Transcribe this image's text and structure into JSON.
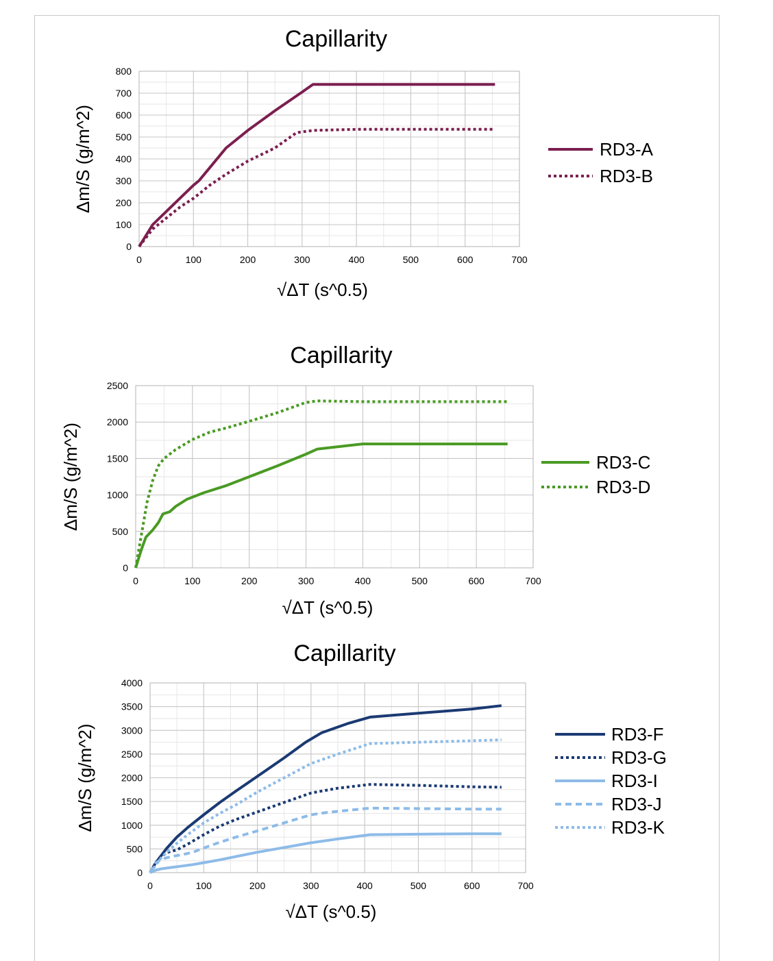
{
  "chart_data": [
    {
      "type": "line",
      "title": "Capillarity",
      "xlabel": "√ΔT (s^0.5)",
      "ylabel": "Δm/S (g/m^2)",
      "xlim": [
        0,
        700
      ],
      "ylim": [
        0,
        800
      ],
      "xticks": [
        0,
        100,
        200,
        300,
        400,
        500,
        600,
        700
      ],
      "yticks": [
        0,
        100,
        200,
        300,
        400,
        500,
        600,
        700,
        800
      ],
      "grid": true,
      "legend_position": "right",
      "series": [
        {
          "name": "RD3-A",
          "color": "#7b1f4f",
          "dash": "solid",
          "x": [
            0,
            25,
            50,
            75,
            100,
            110,
            130,
            160,
            200,
            250,
            300,
            320,
            400,
            500,
            600,
            655
          ],
          "y": [
            0,
            100,
            160,
            220,
            280,
            300,
            360,
            450,
            530,
            620,
            705,
            740,
            740,
            740,
            740,
            740
          ]
        },
        {
          "name": "RD3-B",
          "color": "#7b1f4f",
          "dash": "dotted",
          "x": [
            0,
            25,
            50,
            75,
            100,
            130,
            160,
            200,
            250,
            290,
            320,
            400,
            500,
            600,
            655
          ],
          "y": [
            0,
            80,
            130,
            180,
            220,
            280,
            330,
            390,
            450,
            520,
            530,
            535,
            535,
            535,
            535
          ]
        }
      ]
    },
    {
      "type": "line",
      "title": "Capillarity",
      "xlabel": "√ΔT (s^0.5)",
      "ylabel": "Δm/S (g/m^2)",
      "xlim": [
        0,
        700
      ],
      "ylim": [
        0,
        2500
      ],
      "xticks": [
        0,
        100,
        200,
        300,
        400,
        500,
        600,
        700
      ],
      "yticks": [
        0,
        500,
        1000,
        1500,
        2000,
        2500
      ],
      "grid": true,
      "legend_position": "right",
      "series": [
        {
          "name": "RD3-C",
          "color": "#4a9a24",
          "dash": "solid",
          "x": [
            0,
            10,
            18,
            30,
            40,
            48,
            60,
            70,
            90,
            120,
            160,
            200,
            250,
            300,
            320,
            400,
            500,
            600,
            655
          ],
          "y": [
            0,
            250,
            420,
            520,
            620,
            740,
            770,
            840,
            940,
            1030,
            1130,
            1250,
            1400,
            1560,
            1630,
            1700,
            1700,
            1700,
            1700
          ]
        },
        {
          "name": "RD3-D",
          "color": "#4a9a24",
          "dash": "dotted",
          "x": [
            0,
            10,
            20,
            30,
            40,
            50,
            70,
            100,
            130,
            160,
            200,
            250,
            300,
            320,
            400,
            500,
            600,
            655
          ],
          "y": [
            0,
            450,
            900,
            1200,
            1400,
            1500,
            1620,
            1760,
            1860,
            1920,
            2010,
            2130,
            2270,
            2290,
            2280,
            2280,
            2280,
            2280
          ]
        }
      ]
    },
    {
      "type": "line",
      "title": "Capillarity",
      "xlabel": "√ΔT (s^0.5)",
      "ylabel": "Δm/S (g/m^2)",
      "xlim": [
        0,
        700
      ],
      "ylim": [
        0,
        4000
      ],
      "xticks": [
        0,
        100,
        200,
        300,
        400,
        500,
        600,
        700
      ],
      "yticks": [
        0,
        500,
        1000,
        1500,
        2000,
        2500,
        3000,
        3500,
        4000
      ],
      "grid": true,
      "legend_position": "right",
      "series": [
        {
          "name": "RD3-F",
          "color": "#1b3a73",
          "dash": "solid",
          "x": [
            0,
            10,
            20,
            30,
            50,
            70,
            100,
            130,
            160,
            200,
            250,
            290,
            320,
            370,
            410,
            500,
            600,
            655
          ],
          "y": [
            0,
            200,
            350,
            500,
            750,
            950,
            1220,
            1480,
            1720,
            2030,
            2420,
            2750,
            2950,
            3150,
            3280,
            3360,
            3450,
            3520
          ]
        },
        {
          "name": "RD3-G",
          "color": "#1b3a73",
          "dash": "dotted",
          "x": [
            0,
            10,
            20,
            30,
            50,
            70,
            100,
            130,
            160,
            200,
            250,
            300,
            350,
            410,
            500,
            600,
            655
          ],
          "y": [
            0,
            200,
            330,
            420,
            480,
            600,
            800,
            980,
            1120,
            1280,
            1480,
            1680,
            1780,
            1860,
            1840,
            1810,
            1800
          ]
        },
        {
          "name": "RD3-I",
          "color": "#8dbbe8",
          "dash": "solid",
          "x": [
            0,
            10,
            20,
            40,
            60,
            80,
            100,
            130,
            160,
            200,
            250,
            300,
            350,
            410,
            500,
            600,
            655
          ],
          "y": [
            0,
            50,
            80,
            110,
            140,
            170,
            210,
            270,
            340,
            430,
            530,
            630,
            710,
            800,
            810,
            820,
            820
          ]
        },
        {
          "name": "RD3-J",
          "color": "#8dbbe8",
          "dash": "dashed",
          "x": [
            0,
            10,
            20,
            40,
            60,
            80,
            100,
            130,
            160,
            200,
            250,
            300,
            330,
            410,
            500,
            600,
            655
          ],
          "y": [
            0,
            200,
            280,
            340,
            380,
            430,
            520,
            640,
            750,
            880,
            1050,
            1220,
            1270,
            1360,
            1350,
            1340,
            1340
          ]
        },
        {
          "name": "RD3-K",
          "color": "#8dbbe8",
          "dash": "dotted",
          "x": [
            0,
            10,
            20,
            30,
            50,
            70,
            100,
            130,
            160,
            200,
            250,
            300,
            350,
            410,
            500,
            600,
            655
          ],
          "y": [
            0,
            150,
            300,
            420,
            620,
            800,
            1050,
            1250,
            1430,
            1700,
            2000,
            2300,
            2500,
            2720,
            2750,
            2780,
            2800
          ]
        }
      ]
    }
  ]
}
